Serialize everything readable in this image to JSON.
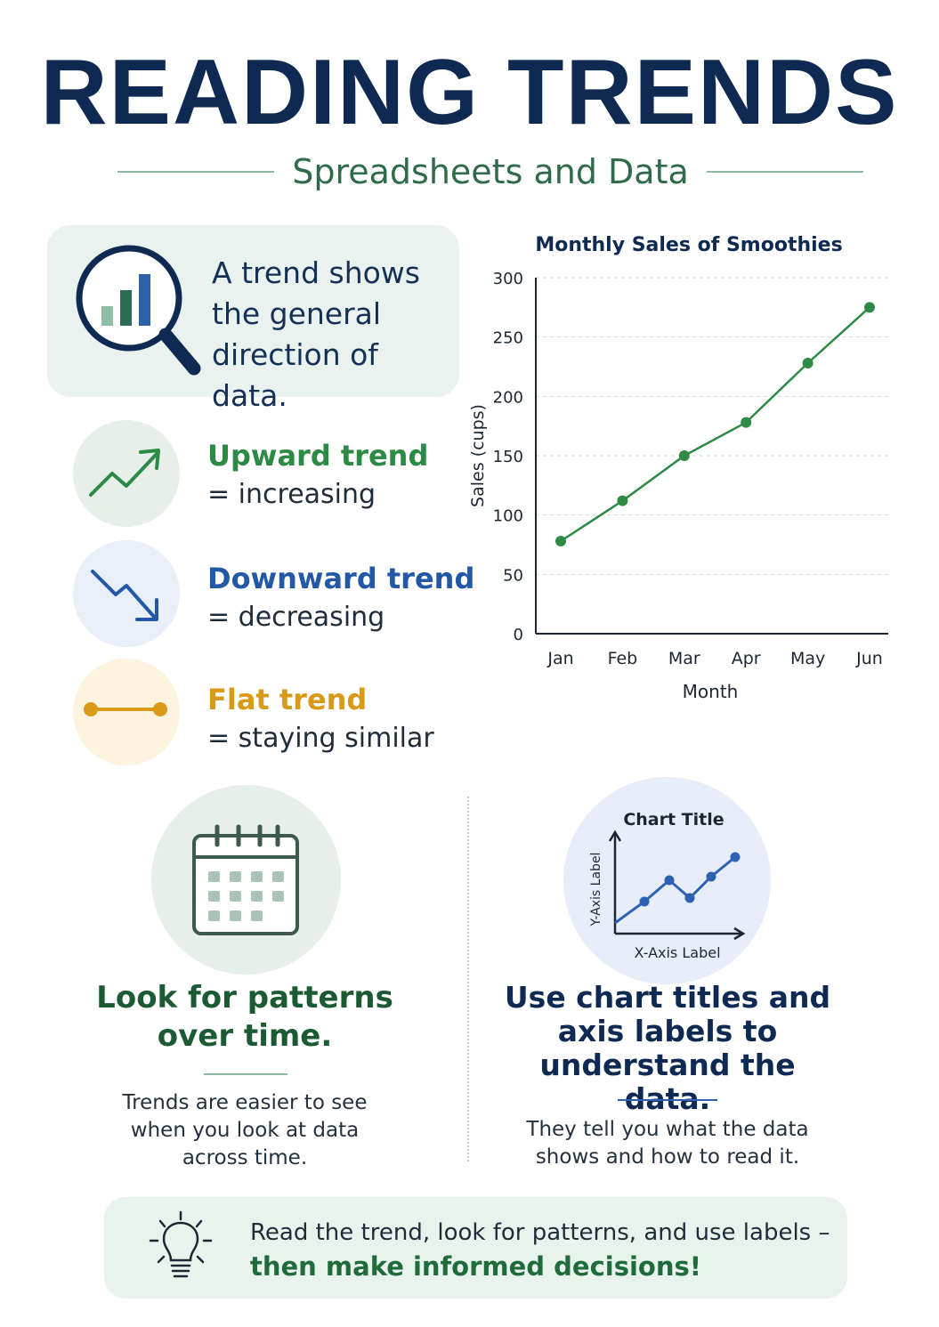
{
  "header": {
    "title": "READING TRENDS",
    "subtitle": "Spreadsheets and Data"
  },
  "definition": {
    "text": "A trend shows the general direction of data.",
    "icon": "magnifier-bar-chart-icon"
  },
  "trends": [
    {
      "name": "Upward trend",
      "desc": "= increasing",
      "icon": "trend-up-arrow-icon",
      "color": "#2b8a43",
      "bg": "#e6efe9"
    },
    {
      "name": "Downward trend",
      "desc": "= decreasing",
      "icon": "trend-down-arrow-icon",
      "color": "#2358a6",
      "bg": "#e8eff9"
    },
    {
      "name": "Flat trend",
      "desc": "= staying similar",
      "icon": "flat-line-icon",
      "color": "#d99a18",
      "bg": "#fdf3de"
    }
  ],
  "chart_data": {
    "type": "line",
    "title": "Monthly Sales of Smoothies",
    "xlabel": "Month",
    "ylabel": "Sales (cups)",
    "categories": [
      "Jan",
      "Feb",
      "Mar",
      "Apr",
      "May",
      "Jun"
    ],
    "series": [
      {
        "values": [
          78,
          112,
          150,
          178,
          228,
          275
        ]
      }
    ],
    "ylim": [
      0,
      300
    ],
    "yticks": [
      0,
      50,
      100,
      150,
      200,
      250,
      300
    ],
    "grid": true,
    "line_color": "#2e8a45"
  },
  "patterns": {
    "heading_line1": "Look for patterns",
    "heading_line2": "over time.",
    "body_line1": "Trends are easier to see",
    "body_line2": "when you look at data",
    "body_line3": "across time.",
    "icon": "calendar-icon"
  },
  "labels_tip": {
    "mini_chart": {
      "title": "Chart Title",
      "ylabel": "Y-Axis Label",
      "xlabel": "X-Axis Label"
    },
    "heading_line1": "Use chart titles and",
    "heading_line2": "axis labels to",
    "heading_line3": "understand the data.",
    "body_line1": "They tell you what the data",
    "body_line2": "shows and how to read it.",
    "icon": "labeled-line-chart-icon"
  },
  "footer": {
    "line1": "Read the trend, look for patterns, and use labels –",
    "line2": "then make informed decisions!",
    "icon": "lightbulb-icon"
  }
}
